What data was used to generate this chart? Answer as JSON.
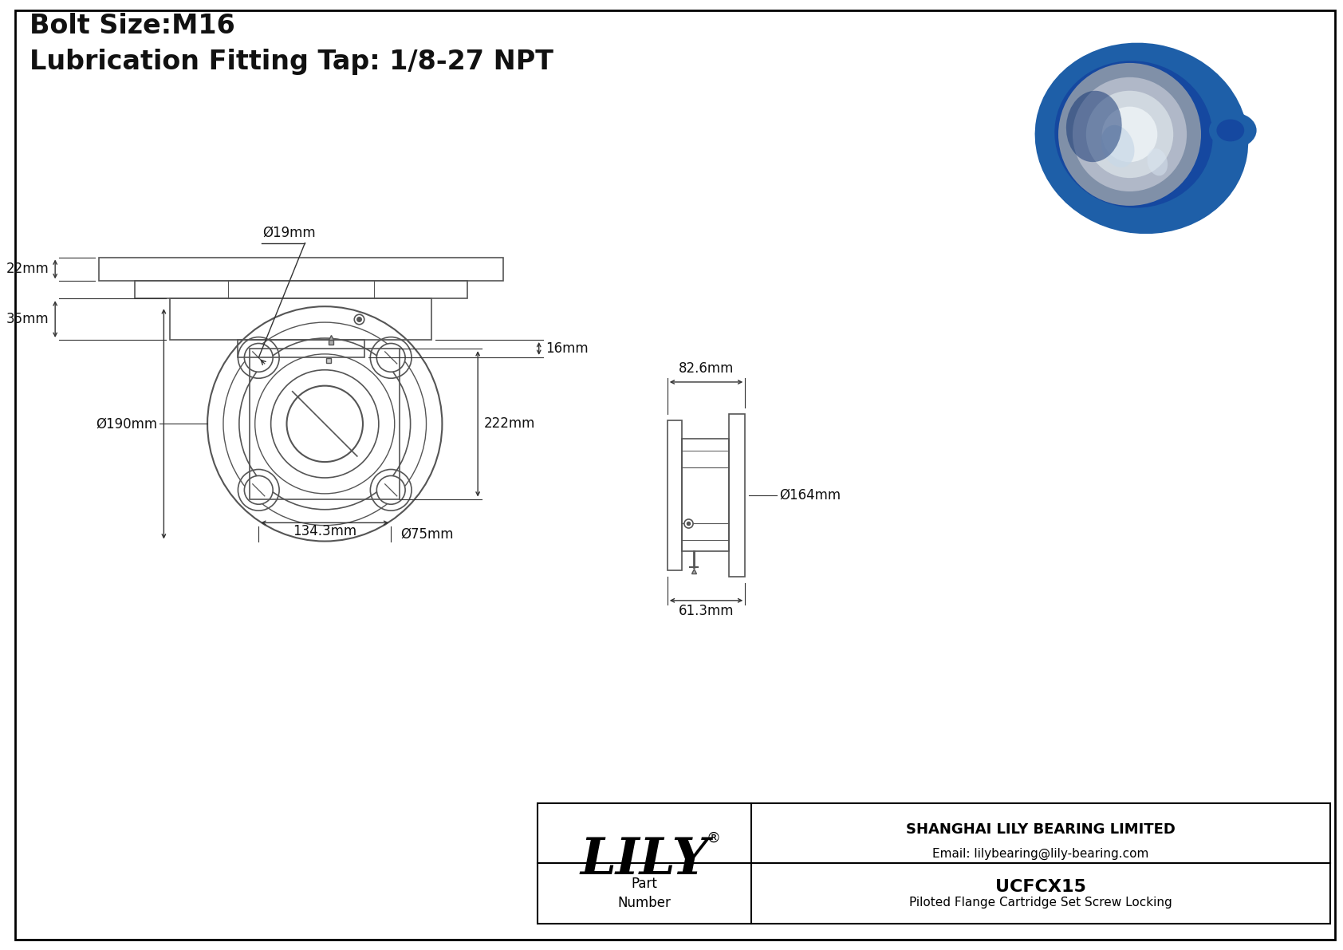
{
  "title_line1": "Bolt Size:M16",
  "title_line2": "Lubrication Fitting Tap: 1/8-27 NPT",
  "bg_color": "#ffffff",
  "border_color": "#000000",
  "line_color": "#555555",
  "dim_color": "#333333",
  "text_color": "#111111",
  "annotations": {
    "d19": "Ø19mm",
    "d190": "Ø190mm",
    "d75": "Ø75mm",
    "d164": "Ø164mm",
    "w222": "222mm",
    "w134": "134.3mm",
    "w82": "82.6mm",
    "w61": "61.3mm",
    "h35": "35mm",
    "h16": "16mm",
    "h22": "22mm"
  },
  "company_name": "LILY",
  "company_reg": "®",
  "company_full": "SHANGHAI LILY BEARING LIMITED",
  "company_email": "Email: lilybearing@lily-bearing.com",
  "part_label": "Part\nNumber",
  "part_number": "UCFCX15",
  "part_desc": "Piloted Flange Cartridge Set Screw Locking"
}
